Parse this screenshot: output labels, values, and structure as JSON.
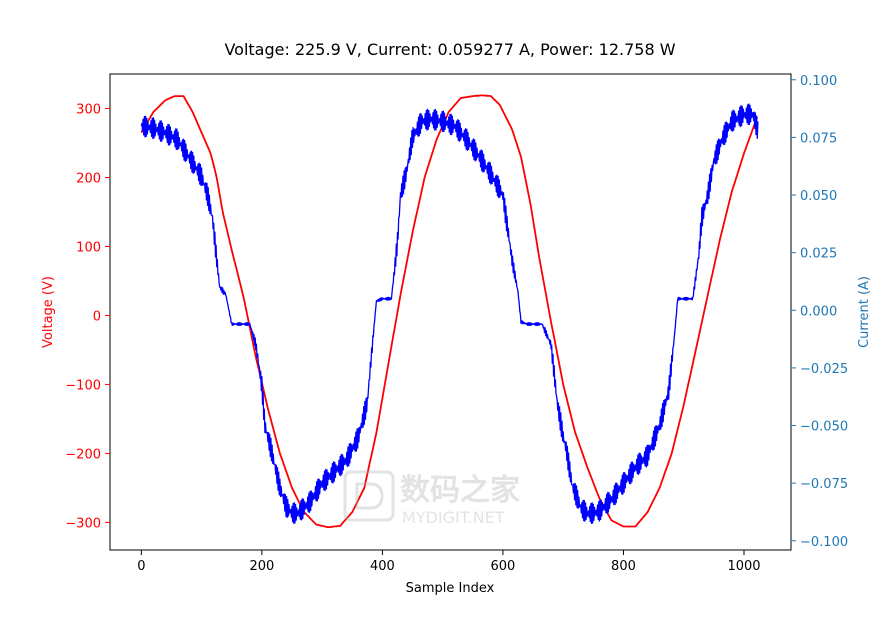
{
  "chart_data": {
    "type": "line",
    "title": "Voltage: 225.9 V, Current: 0.059277 A, Power: 12.758 W",
    "xlabel": "Sample Index",
    "ylabel_left": "Voltage (V)",
    "ylabel_right": "Current (A)",
    "xlim": [
      -52,
      1078
    ],
    "ylim_left": [
      -340,
      350
    ],
    "ylim_right": [
      -0.104,
      0.1025
    ],
    "x_ticks": [
      0,
      200,
      400,
      600,
      800,
      1000
    ],
    "y_left_ticks": [
      -300,
      -200,
      -100,
      0,
      100,
      200,
      300
    ],
    "y_right_ticks": [
      -0.1,
      -0.075,
      -0.05,
      -0.025,
      0.0,
      0.025,
      0.05,
      0.075,
      0.1
    ],
    "x_tick_labels": [
      "0",
      "200",
      "400",
      "600",
      "800",
      "1000"
    ],
    "y_left_tick_labels": [
      "300",
      "200",
      "100",
      "0",
      "−100",
      "−200",
      "−300"
    ],
    "y_right_tick_labels": [
      "0.100",
      "0.075",
      "0.050",
      "0.025",
      "0.000",
      "−0.025",
      "−0.050",
      "−0.075",
      "−0.100"
    ],
    "grid": false,
    "series": [
      {
        "axis": "left",
        "color": "#ff0000",
        "x": [
          0,
          20,
          40,
          55,
          70,
          85,
          100,
          115,
          125,
          135,
          150,
          170,
          190,
          210,
          230,
          250,
          270,
          290,
          310,
          330,
          350,
          370,
          390,
          410,
          430,
          450,
          470,
          490,
          510,
          530,
          550,
          565,
          580,
          595,
          615,
          630,
          645,
          660,
          680,
          700,
          720,
          740,
          760,
          780,
          800,
          820,
          840,
          860,
          880,
          900,
          920,
          940,
          960,
          980,
          1000,
          1023
        ],
        "values": [
          265,
          295,
          312,
          318,
          318,
          295,
          265,
          235,
          200,
          150,
          95,
          25,
          -60,
          -135,
          -200,
          -250,
          -285,
          -303,
          -307,
          -305,
          -285,
          -250,
          -170,
          -70,
          30,
          120,
          200,
          255,
          295,
          315,
          318,
          319,
          318,
          305,
          270,
          230,
          165,
          85,
          -10,
          -100,
          -170,
          -220,
          -265,
          -297,
          -306,
          -306,
          -285,
          -250,
          -200,
          -130,
          -50,
          30,
          110,
          180,
          235,
          290
        ]
      },
      {
        "axis": "right",
        "color": "#0000ff",
        "x": [
          0,
          20,
          40,
          60,
          80,
          100,
          110,
          118,
          125,
          130,
          140,
          150,
          165,
          180,
          190,
          200,
          205,
          215,
          230,
          240,
          250,
          260,
          280,
          300,
          320,
          340,
          360,
          375,
          385,
          390,
          400,
          415,
          425,
          430,
          440,
          450,
          465,
          480,
          500,
          520,
          540,
          560,
          580,
          600,
          615,
          625,
          630,
          640,
          650,
          665,
          680,
          690,
          700,
          705,
          715,
          730,
          740,
          750,
          760,
          780,
          800,
          820,
          840,
          860,
          875,
          885,
          890,
          900,
          915,
          925,
          930,
          940,
          950,
          965,
          980,
          1000,
          1015,
          1023
        ],
        "values": [
          0.08,
          0.079,
          0.077,
          0.074,
          0.066,
          0.058,
          0.05,
          0.04,
          0.022,
          0.01,
          0.007,
          -0.006,
          -0.006,
          -0.006,
          -0.015,
          -0.033,
          -0.05,
          -0.06,
          -0.077,
          -0.085,
          -0.088,
          -0.088,
          -0.083,
          -0.075,
          -0.07,
          -0.065,
          -0.055,
          -0.04,
          -0.01,
          0.004,
          0.005,
          0.005,
          0.03,
          0.05,
          0.06,
          0.075,
          0.082,
          0.083,
          0.082,
          0.08,
          0.074,
          0.067,
          0.059,
          0.05,
          0.022,
          0.008,
          -0.005,
          -0.006,
          -0.006,
          -0.006,
          -0.015,
          -0.04,
          -0.055,
          -0.06,
          -0.076,
          -0.086,
          -0.088,
          -0.088,
          -0.087,
          -0.082,
          -0.075,
          -0.068,
          -0.063,
          -0.05,
          -0.035,
          -0.01,
          0.005,
          0.005,
          0.005,
          0.024,
          0.04,
          0.05,
          0.065,
          0.075,
          0.082,
          0.085,
          0.085,
          0.078
        ]
      }
    ]
  },
  "watermark": {
    "text_cn": "数码之家",
    "text_en": "MYDIGIT.NET"
  }
}
